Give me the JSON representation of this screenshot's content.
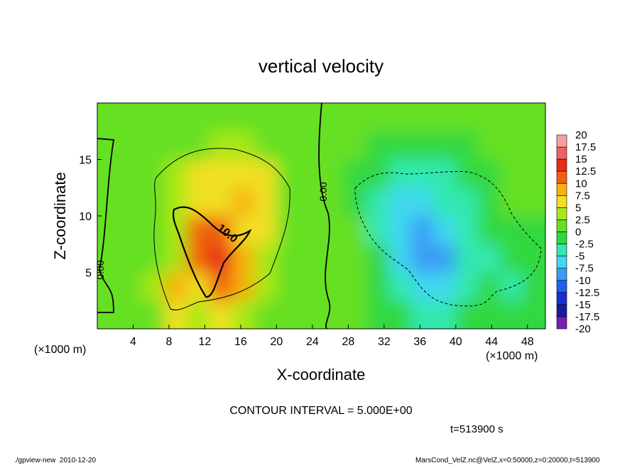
{
  "chart_data": {
    "type": "contour",
    "title": "vertical velocity",
    "x_label": "X-coordinate",
    "y_label": "Z-coordinate",
    "x_unit": "(×1000 m)",
    "y_unit": "(×1000 m)",
    "contour_interval": "CONTOUR INTERVAL = 5.000E+00",
    "time_label": "t=513900 s",
    "footer_left": "./gpview-new  2010-12-20",
    "footer_right": "MarsCond_VelZ.nc@VelZ,x=0:50000,z=0:20000,t=513900",
    "contour_labels": [
      "10.0",
      "0.00",
      "0.00"
    ],
    "xlim": [
      0,
      50
    ],
    "ylim": [
      0,
      20
    ],
    "xticks": [
      4,
      8,
      12,
      16,
      20,
      24,
      28,
      32,
      36,
      40,
      44,
      48
    ],
    "yticks": [
      5,
      10,
      15
    ],
    "x": [
      1.25,
      3.75,
      6.25,
      8.75,
      11.25,
      13.75,
      16.25,
      18.75,
      21.25,
      23.75,
      26.25,
      28.75,
      31.25,
      33.75,
      36.25,
      38.75,
      41.25,
      43.75,
      46.25,
      48.75
    ],
    "y": [
      1.25,
      3.75,
      6.25,
      8.75,
      11.25,
      13.75,
      16.25,
      18.75
    ],
    "z": [
      [
        0,
        1,
        2,
        5,
        4,
        5,
        3,
        2,
        1,
        0,
        0,
        0,
        -1,
        -2,
        -3,
        -3,
        -2,
        -1,
        -2,
        -1
      ],
      [
        0,
        1,
        3,
        8,
        6,
        12,
        8,
        3,
        1,
        0,
        0,
        0,
        -1,
        -3,
        -7,
        -7,
        -4,
        -2,
        -4,
        -2
      ],
      [
        1,
        1,
        2,
        4,
        10,
        14,
        9,
        4,
        1,
        0,
        0,
        0,
        -2,
        -6,
        -8,
        -8,
        -5,
        -3,
        -2,
        -2
      ],
      [
        1,
        1,
        2,
        4,
        12,
        10,
        6,
        6,
        2,
        0,
        0,
        0,
        -3,
        -7,
        -8,
        -7,
        -4,
        -2,
        -1,
        -1
      ],
      [
        1,
        1,
        2,
        4,
        6,
        7,
        8,
        7,
        2,
        0,
        0,
        -1,
        -3,
        -7,
        -6,
        -5,
        -3,
        -1,
        0,
        0
      ],
      [
        1,
        1,
        1,
        3,
        5,
        6,
        6,
        5,
        2,
        0,
        0,
        -1,
        -2,
        -4,
        -5,
        -3,
        -2,
        -1,
        0,
        0
      ],
      [
        0,
        1,
        1,
        1,
        2,
        3,
        3,
        2,
        1,
        0,
        0,
        0,
        -1,
        -2,
        -2,
        -1,
        -1,
        0,
        0,
        0
      ],
      [
        1,
        1,
        1,
        1,
        1,
        1,
        1,
        1,
        1,
        0,
        0,
        0,
        0,
        0,
        0,
        0,
        0,
        0,
        0,
        0
      ]
    ],
    "colorbar": {
      "levels": [
        -20,
        -17.5,
        -15,
        -12.5,
        -10,
        -7.5,
        -5,
        -2.5,
        0,
        2.5,
        5,
        7.5,
        10,
        12.5,
        15,
        17.5,
        20
      ],
      "colors": [
        "#7a1fb0",
        "#1a1aa0",
        "#1a2fd8",
        "#2060f0",
        "#3a9cf5",
        "#40d8f0",
        "#30e8b0",
        "#30d840",
        "#66e020",
        "#a8e818",
        "#f0e020",
        "#f8b010",
        "#f06010",
        "#e82818",
        "#f06060",
        "#f8a0a0"
      ]
    }
  }
}
